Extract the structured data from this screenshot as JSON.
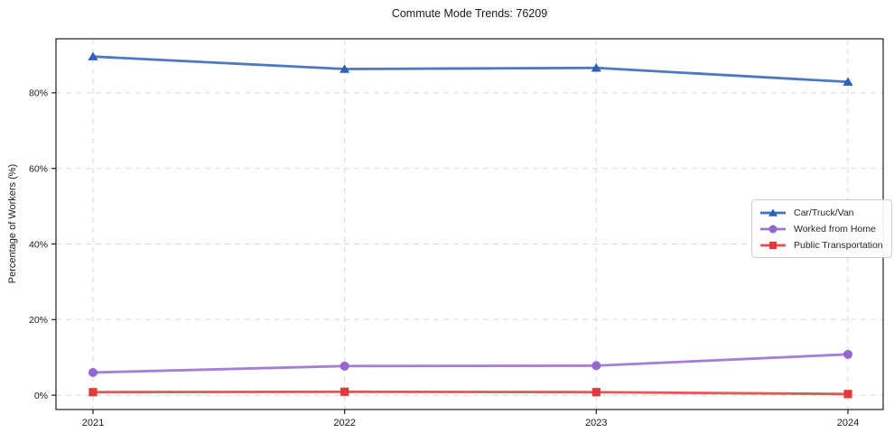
{
  "figure": {
    "title": "Commute Mode Trends: 76209"
  },
  "chart_data": {
    "type": "line",
    "title": "Commute Mode Trends: 76209",
    "xlabel": "",
    "ylabel": "Percentage of Workers (%)",
    "categories": [
      "2021",
      "2022",
      "2023",
      "2024"
    ],
    "y_ticks": [
      0,
      20,
      40,
      60,
      80
    ],
    "y_tick_labels": [
      "0%",
      "20%",
      "40%",
      "60%",
      "80%"
    ],
    "xlim": [
      2020.853,
      2024.14
    ],
    "ylim": [
      -3.8,
      94.3
    ],
    "grid": true,
    "grid_style": "dashed",
    "legend_position": "inside-right-center",
    "series": [
      {
        "name": "Car/Truck/Van",
        "marker": "triangle",
        "color": "#2d62b6",
        "values": [
          89.6,
          86.3,
          86.6,
          82.9
        ]
      },
      {
        "name": "Worked from Home",
        "marker": "circle",
        "color": "#9468cf",
        "values": [
          6.0,
          7.7,
          7.8,
          10.8
        ]
      },
      {
        "name": "Public Transportation",
        "marker": "square",
        "color": "#e03a3a",
        "values": [
          0.8,
          0.9,
          0.8,
          0.3
        ]
      }
    ]
  },
  "style": {
    "background": "#ffffff",
    "grid_color": "#d8d8d8",
    "axis_color": "#1f1f1f",
    "text_color": "#1a1a1a",
    "legend_border": "#cccccc"
  }
}
